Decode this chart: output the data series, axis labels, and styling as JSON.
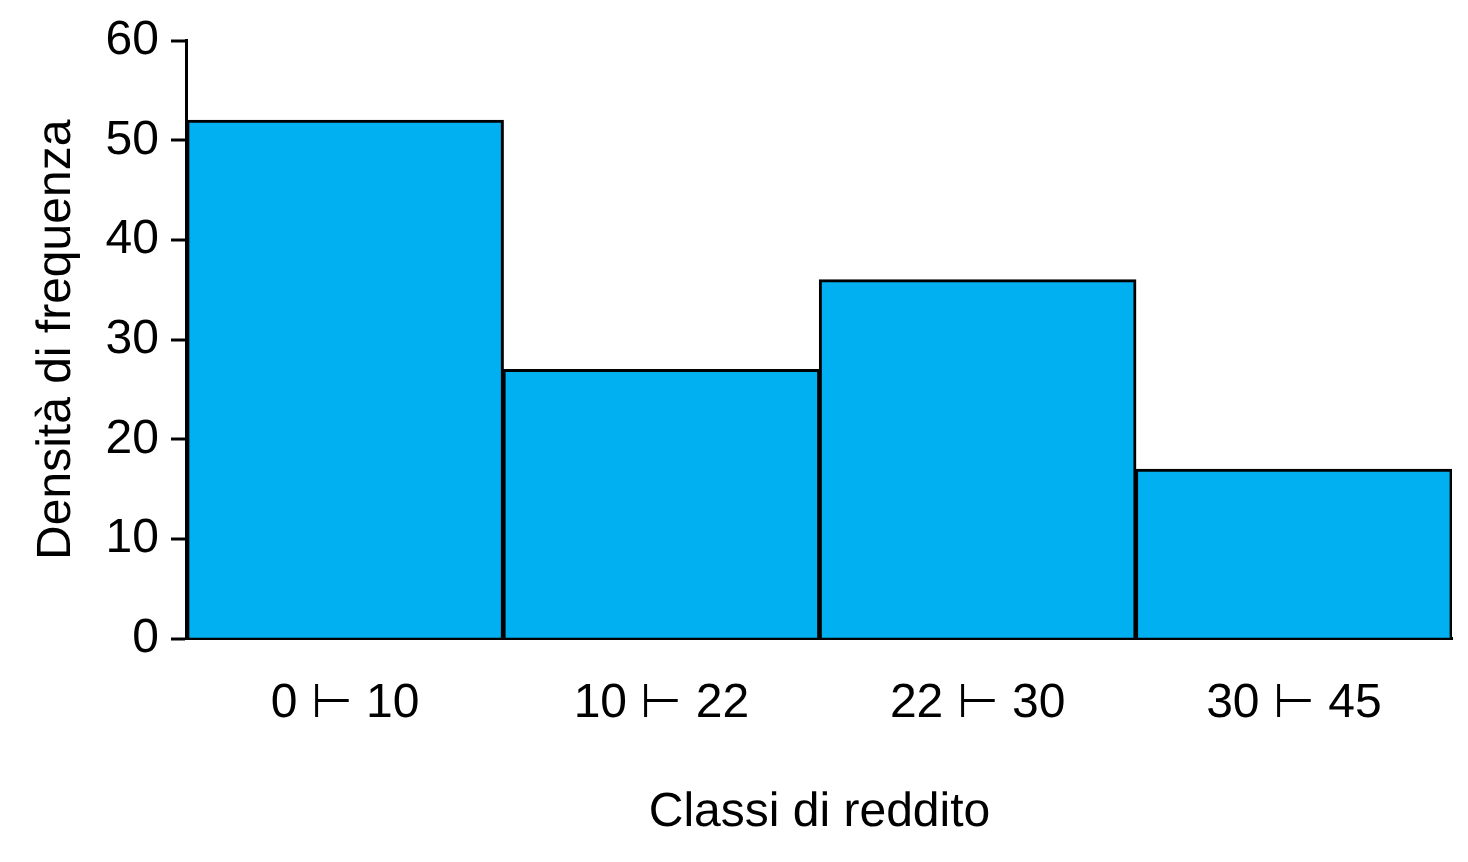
{
  "chart_data": {
    "type": "bar",
    "xlabel": "Classi di reddito",
    "ylabel": "Densità di frequenza",
    "categories": [
      "0 ⊢ 10",
      "10 ⊢ 22",
      "22 ⊢ 30",
      "30 ⊢ 45"
    ],
    "values": [
      52,
      27,
      36,
      17
    ],
    "color": "#00b0f0",
    "ylim": [
      0,
      60
    ],
    "yticks": [
      0,
      10,
      20,
      30,
      40,
      50,
      60
    ],
    "grid": false,
    "legend": false
  }
}
